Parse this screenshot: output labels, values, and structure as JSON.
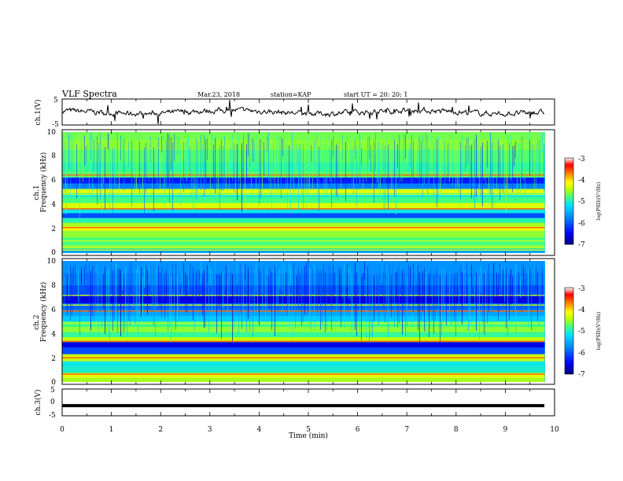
{
  "header": {
    "title": "VLF Spectra",
    "date": "Mar.23, 2018",
    "station": "station=KAP",
    "start": "start  UT =   20: 20: 1"
  },
  "colors": {
    "colormap": [
      "#00007a",
      "#0000ff",
      "#0080ff",
      "#00e0ff",
      "#40ff80",
      "#c0ff00",
      "#ffff00",
      "#ff8000",
      "#ff0000",
      "#ffffff"
    ],
    "trace": "#000000",
    "background": "#ffffff"
  },
  "chart_data": [
    {
      "type": "line",
      "panel": "ch1-waveform",
      "ylabel": "ch.1(V)",
      "ylim": [
        -5,
        5
      ],
      "yticks": [
        "5",
        "-5"
      ],
      "xlim": [
        0,
        9.8
      ],
      "description_values": {
        "typical_range_V": [
          -1,
          1
        ]
      }
    },
    {
      "type": "heatmap",
      "panel": "ch1-spectrogram",
      "ylabel": "ch.1\nFrequency (kHz)",
      "ylabel_line1": "ch.1",
      "ylabel_line2": "Frequency (kHz)",
      "ylim": [
        0,
        10
      ],
      "yticks": [
        "0",
        "2",
        "4",
        "6",
        "8",
        "10"
      ],
      "xlim": [
        0,
        9.8
      ],
      "colorbar": {
        "label": "log(PSD)(V²/Hz)",
        "range": [
          -7,
          -3
        ],
        "ticks": [
          "-3",
          "-4",
          "-5",
          "-6",
          "-7"
        ]
      },
      "bands": [
        {
          "f": 0.2,
          "level": -5.8
        },
        {
          "f": 0.5,
          "level": -4.8
        },
        {
          "f": 0.9,
          "level": -5.0
        },
        {
          "f": 1.6,
          "level": -4.7
        },
        {
          "f": 2.1,
          "level": -4.0
        },
        {
          "f": 2.3,
          "level": -4.6
        },
        {
          "f": 2.7,
          "level": -5.2
        },
        {
          "f": 3.1,
          "level": -6.2
        },
        {
          "f": 3.5,
          "level": -5.4
        },
        {
          "f": 3.9,
          "level": -4.3
        },
        {
          "f": 4.4,
          "level": -5.0
        },
        {
          "f": 4.8,
          "level": -5.3
        },
        {
          "f": 5.1,
          "level": -4.2
        },
        {
          "f": 5.5,
          "level": -6.0
        },
        {
          "f": 6.0,
          "level": -6.4
        },
        {
          "f": 6.5,
          "level": -4.9
        },
        {
          "f": 7.0,
          "level": -5.1
        },
        {
          "f": 8.0,
          "level": -4.9
        },
        {
          "f": 9.0,
          "level": -4.7
        },
        {
          "f": 9.8,
          "level": -4.8
        }
      ]
    },
    {
      "type": "heatmap",
      "panel": "ch2-spectrogram",
      "ylabel_line1": "ch.2",
      "ylabel_line2": "Frequency (kHz)",
      "ylim": [
        0,
        10
      ],
      "yticks": [
        "0",
        "2",
        "4",
        "6",
        "8",
        "10"
      ],
      "xlim": [
        0,
        9.8
      ],
      "colorbar": {
        "label": "log(PSD)(V²/Hz)",
        "range": [
          -7,
          -3
        ],
        "ticks": [
          "-3",
          "-4",
          "-5",
          "-6",
          "-7"
        ]
      },
      "bands": [
        {
          "f": 0.2,
          "level": -4.6
        },
        {
          "f": 0.5,
          "level": -4.2
        },
        {
          "f": 1.0,
          "level": -5.3
        },
        {
          "f": 1.6,
          "level": -5.4
        },
        {
          "f": 2.0,
          "level": -4.4
        },
        {
          "f": 2.6,
          "level": -6.2
        },
        {
          "f": 3.1,
          "level": -6.6
        },
        {
          "f": 3.5,
          "level": -4.5
        },
        {
          "f": 3.9,
          "level": -5.1
        },
        {
          "f": 4.3,
          "level": -4.7
        },
        {
          "f": 4.8,
          "level": -5.0
        },
        {
          "f": 5.2,
          "level": -5.6
        },
        {
          "f": 5.7,
          "level": -5.8
        },
        {
          "f": 6.2,
          "level": -6.1
        },
        {
          "f": 6.8,
          "level": -6.6
        },
        {
          "f": 7.5,
          "level": -6.2
        },
        {
          "f": 8.5,
          "level": -6.0
        },
        {
          "f": 9.5,
          "level": -5.9
        }
      ]
    },
    {
      "type": "line",
      "panel": "ch3-waveform",
      "ylabel": "ch.3(V)",
      "ylim": [
        -5,
        5
      ],
      "yticks": [
        "5",
        "0",
        "-5"
      ],
      "xlim": [
        0,
        9.8
      ],
      "y_constant": -1.2
    }
  ],
  "xaxis": {
    "label": "Time  (min)",
    "ticks": [
      "0",
      "1",
      "2",
      "3",
      "4",
      "5",
      "6",
      "7",
      "8",
      "9",
      "10"
    ],
    "range": [
      0,
      10
    ]
  }
}
